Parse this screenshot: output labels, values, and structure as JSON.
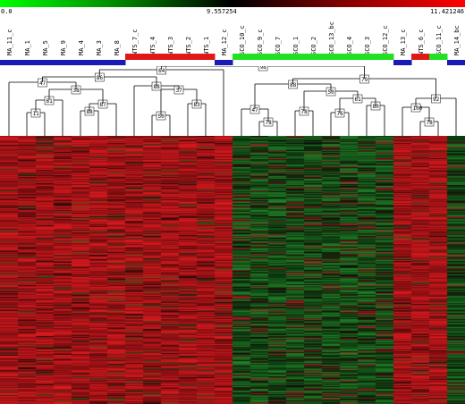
{
  "color_scale": {
    "min_label": "0.0",
    "mid_label": "9.557254",
    "max_label": "11.421246",
    "low_color": "#00ff00",
    "mid_color": "#000000",
    "high_color": "#ff0000"
  },
  "samples": [
    {
      "label": "MA_11_c",
      "group": "blue"
    },
    {
      "label": "MA_1",
      "group": "blue"
    },
    {
      "label": "MA_5",
      "group": "blue"
    },
    {
      "label": "MA_9",
      "group": "blue"
    },
    {
      "label": "MA_4",
      "group": "blue"
    },
    {
      "label": "MA_3",
      "group": "blue"
    },
    {
      "label": "MA_8",
      "group": "blue"
    },
    {
      "label": "NTS_7_c",
      "group": "red"
    },
    {
      "label": "NTS_4",
      "group": "red"
    },
    {
      "label": "NTS_3",
      "group": "red"
    },
    {
      "label": "NTS_2",
      "group": "red"
    },
    {
      "label": "NTS_1",
      "group": "red"
    },
    {
      "label": "MA_12_c",
      "group": "blue"
    },
    {
      "label": "SCO_10_c",
      "group": "green"
    },
    {
      "label": "SCO_9_c",
      "group": "green"
    },
    {
      "label": "SCO_7",
      "group": "green"
    },
    {
      "label": "SCO_1",
      "group": "green"
    },
    {
      "label": "SCO_2",
      "group": "green"
    },
    {
      "label": "SCO_13_bc",
      "group": "green"
    },
    {
      "label": "SCO_4",
      "group": "green"
    },
    {
      "label": "SCO_3",
      "group": "green"
    },
    {
      "label": "SCO_12_c",
      "group": "green"
    },
    {
      "label": "MA_13_c",
      "group": "blue"
    },
    {
      "label": "NTS_6_c",
      "group": "red"
    },
    {
      "label": "SCO_11_c",
      "group": "green"
    },
    {
      "label": "MA_14_bc",
      "group": "blue"
    }
  ],
  "group_colors": {
    "blue": "#1a1ab4",
    "red": "#e01818",
    "green": "#22e022"
  },
  "dendrogram": {
    "node_labels": [
      "11",
      "61",
      "88",
      "87",
      "38",
      "47",
      "50",
      "83",
      "37",
      "88",
      "86",
      "64",
      "78",
      "78",
      "76",
      "80",
      "61",
      "50",
      "47",
      "88",
      "78",
      "100",
      "92",
      "79",
      "98"
    ]
  },
  "heatmap": {
    "hot_columns": [
      0,
      1,
      2,
      3,
      4,
      5,
      6,
      7,
      8,
      9,
      10,
      11,
      12,
      22,
      23,
      24
    ],
    "cold_columns": [
      13,
      14,
      15,
      16,
      17,
      18,
      19,
      20,
      21,
      25
    ]
  }
}
